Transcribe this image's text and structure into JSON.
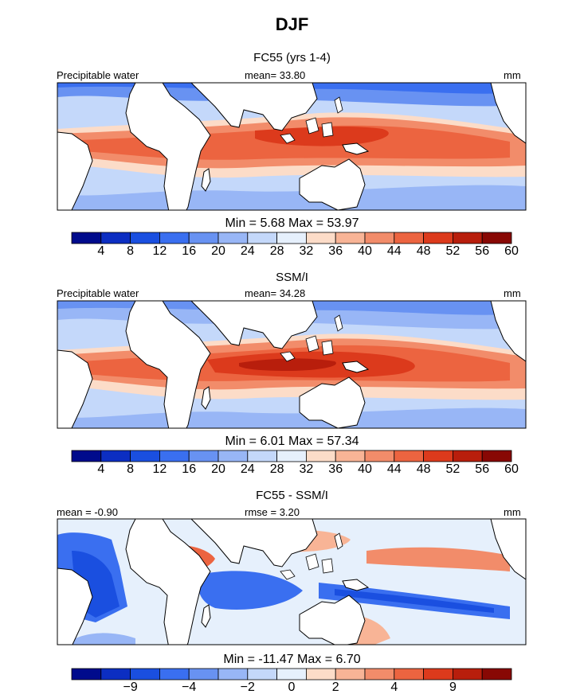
{
  "page": {
    "title": "DJF"
  },
  "colors": {
    "land": "#ffffff",
    "frame": "#000000",
    "field_scale": [
      "#000b8c",
      "#0c2ec2",
      "#1a4fe0",
      "#3a6ff0",
      "#6892f2",
      "#98b6f6",
      "#c4d8fa",
      "#e6f0fc",
      "#fcdcc8",
      "#f8b496",
      "#f28c6a",
      "#ec6440",
      "#dc3a1c",
      "#b81e0c",
      "#880804"
    ],
    "diff_scale": [
      "#000b8c",
      "#0c2ec2",
      "#1a4fe0",
      "#3a6ff0",
      "#6892f2",
      "#98b6f6",
      "#c4d8fa",
      "#e6f0fc",
      "#fcdcc8",
      "#f8b496",
      "#f28c6a",
      "#ec6440",
      "#dc3a1c",
      "#b81e0c",
      "#880804"
    ]
  },
  "chart_data": [
    {
      "type": "heatmap",
      "title": "FC55 (yrs 1-4)",
      "left_label": "Precipitable water",
      "center_label": "mean=   33.80",
      "units": "mm",
      "stats": "Min =     5.68  Max =    53.97",
      "colorbar_ticks": [
        "4",
        "8",
        "12",
        "16",
        "20",
        "24",
        "28",
        "32",
        "36",
        "40",
        "44",
        "48",
        "52",
        "56",
        "60"
      ],
      "regions": [
        {
          "lon": -10,
          "lat": 0,
          "value": 50
        },
        {
          "lon": 130,
          "lat": 5,
          "value": 54
        },
        {
          "lon": -160,
          "lat": 8,
          "value": 50
        },
        {
          "lon": 20,
          "lat": 40,
          "value": 12
        },
        {
          "lon": 170,
          "lat": 40,
          "value": 12
        }
      ]
    },
    {
      "type": "heatmap",
      "title": "SSM/I",
      "left_label": "Precipitable water",
      "center_label": "mean=   34.28",
      "units": "mm",
      "stats": "Min =     6.01  Max =    57.34",
      "colorbar_ticks": [
        "4",
        "8",
        "12",
        "16",
        "20",
        "24",
        "28",
        "32",
        "36",
        "40",
        "44",
        "48",
        "52",
        "56",
        "60"
      ],
      "regions": [
        {
          "lon": 90,
          "lat": 0,
          "value": 57
        },
        {
          "lon": 170,
          "lat": -5,
          "value": 55
        },
        {
          "lon": -40,
          "lat": 0,
          "value": 50
        },
        {
          "lon": 170,
          "lat": 30,
          "value": 16
        }
      ]
    },
    {
      "type": "heatmap",
      "title": "FC55 - SSM/I",
      "left_label": "mean =   -0.90",
      "center_label": "rmse =     3.20",
      "units": "mm",
      "stats": "Min = -11.47  Max =     6.70",
      "colorbar_ticks": [
        "-9",
        "-4",
        "-2",
        "0",
        "2",
        "4",
        "9"
      ],
      "regions": [
        {
          "lon": -5,
          "lat": -10,
          "value": -9
        },
        {
          "lon": 90,
          "lat": -2,
          "value": -6
        },
        {
          "lon": 175,
          "lat": -5,
          "value": -8
        },
        {
          "lon": 50,
          "lat": 15,
          "value": 6
        },
        {
          "lon": -130,
          "lat": 10,
          "value": 5
        }
      ]
    }
  ]
}
